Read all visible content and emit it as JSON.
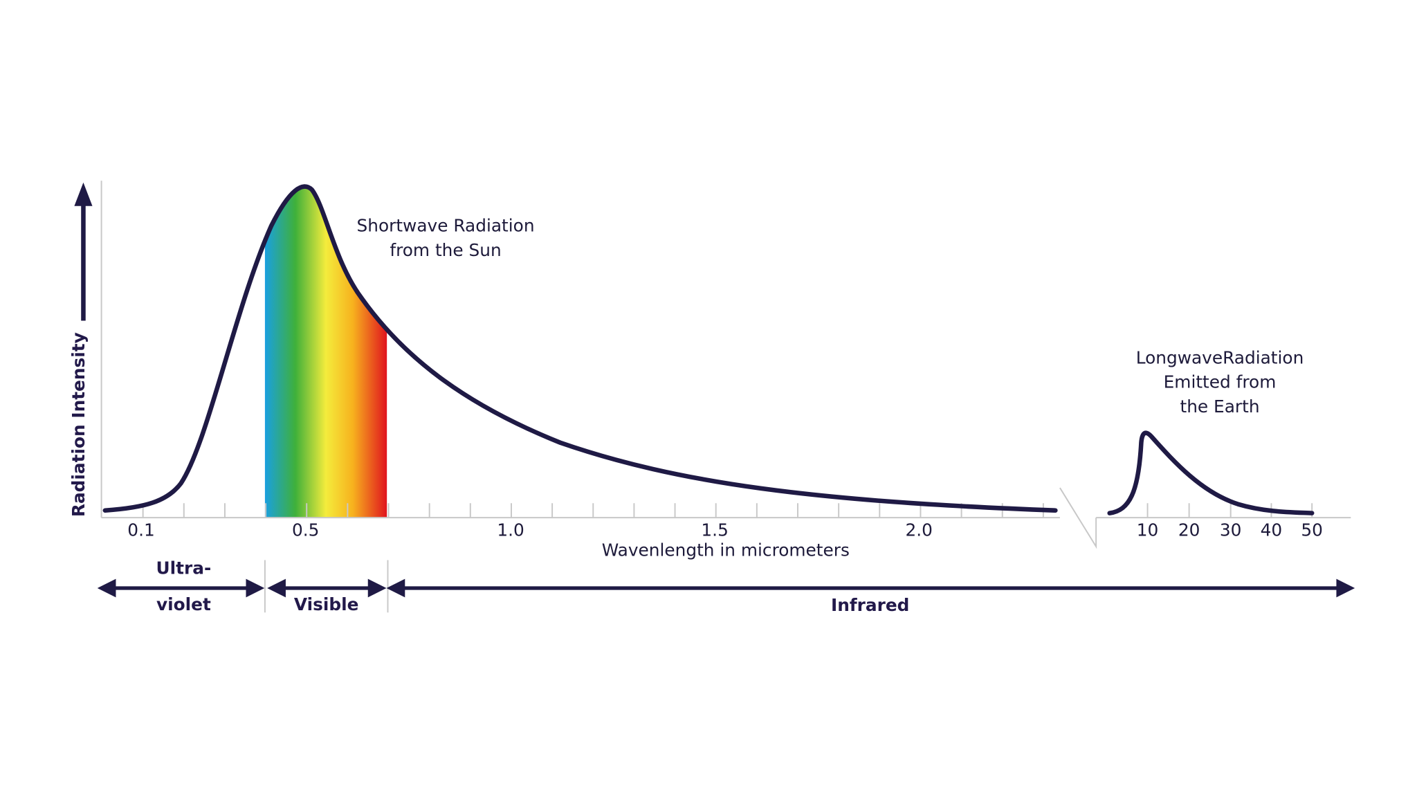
{
  "y_axis": {
    "label": "Radiation Intensity"
  },
  "x_axis": {
    "label": "Wavenlength in micrometers",
    "ticks": [
      "0.1",
      "0.5",
      "1.0",
      "1.5",
      "2.0"
    ],
    "ticks_longwave": [
      "10",
      "20",
      "30",
      "40",
      "50"
    ]
  },
  "annotations": {
    "shortwave": [
      "Shortwave Radiation",
      "from the Sun"
    ],
    "longwave": [
      "LongwaveRadiation",
      "Emitted from",
      "the Earth"
    ]
  },
  "bands": [
    {
      "label": [
        "Ultra-",
        "violet"
      ]
    },
    {
      "label": [
        "Visible"
      ]
    },
    {
      "label": [
        "Infrared"
      ]
    }
  ]
}
